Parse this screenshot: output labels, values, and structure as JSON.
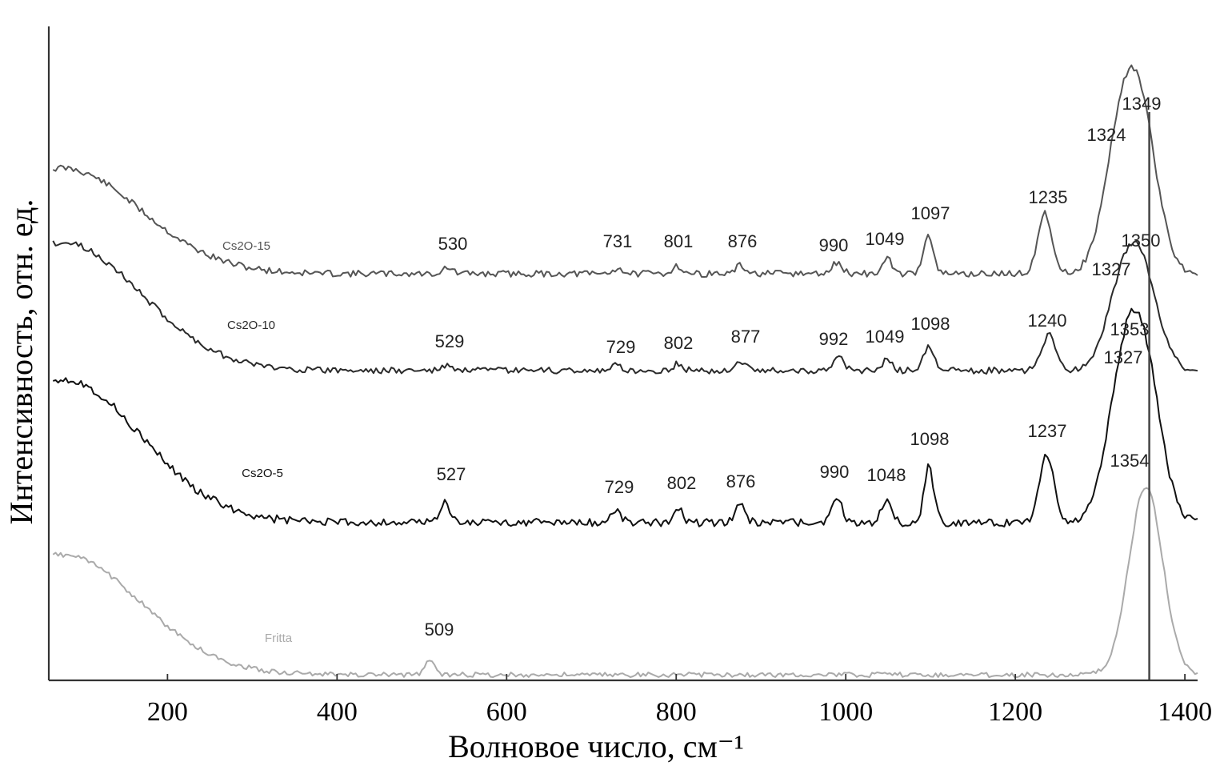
{
  "chart_data": {
    "type": "line",
    "xlabel": "Волновое число, см⁻¹",
    "ylabel": "Интенсивность, отн. ед.",
    "xlim": [
      60,
      1415
    ],
    "x_ticks": [
      200,
      400,
      600,
      800,
      1000,
      1200,
      1400
    ],
    "y_scale": "relative (stacked spectra, offset vertically)",
    "reference_line_x": 1358,
    "series": [
      {
        "name": "Cs2O-15",
        "color": "#555555",
        "peaks": [
          530,
          731,
          801,
          876,
          990,
          1049,
          1097,
          1235,
          1324,
          1349
        ],
        "peak_labels": [
          "530",
          "731",
          "801",
          "876",
          "990",
          "1049",
          "1097",
          "1235",
          "1324",
          "1349"
        ]
      },
      {
        "name": "Cs2O-10",
        "color": "#2a2a2a",
        "peaks": [
          529,
          729,
          802,
          877,
          992,
          1049,
          1098,
          1240,
          1327,
          1350
        ],
        "peak_labels": [
          "529",
          "729",
          "802",
          "877",
          "992",
          "1049",
          "1098",
          "1240",
          "1327",
          "1350"
        ]
      },
      {
        "name": "Cs2O-5",
        "color": "#111111",
        "peaks": [
          527,
          729,
          802,
          876,
          990,
          1048,
          1098,
          1237,
          1327,
          1353
        ],
        "peak_labels": [
          "527",
          "729",
          "802",
          "876",
          "990",
          "1048",
          "1098",
          "1237",
          "1327",
          "1353"
        ]
      },
      {
        "name": "Fritta",
        "color": "#aaaaaa",
        "peaks": [
          509,
          1354
        ],
        "peak_labels": [
          "509",
          "1354"
        ]
      }
    ]
  }
}
